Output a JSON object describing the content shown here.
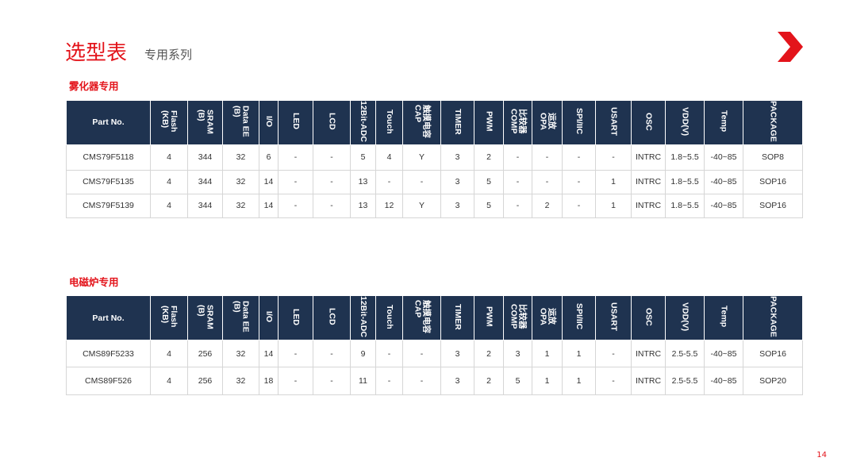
{
  "header": {
    "title": "选型表",
    "subtitle": "专用系列"
  },
  "sections": [
    {
      "title": "雾化器专用",
      "table": {
        "headers": [
          [
            "Part No."
          ],
          [
            "Flash",
            "(KB)"
          ],
          [
            "SRAM",
            "(B)"
          ],
          [
            "Data EE",
            "(B)"
          ],
          [
            "I/O"
          ],
          [
            "LED"
          ],
          [
            "LCD"
          ],
          [
            "12Bit-ADC"
          ],
          [
            "Touch"
          ],
          [
            "触摸电容",
            "CAP"
          ],
          [
            "TIMER"
          ],
          [
            "PWM"
          ],
          [
            "比较器",
            "COMP"
          ],
          [
            "运放",
            "OPA"
          ],
          [
            "SPI/IIC"
          ],
          [
            "USART"
          ],
          [
            "OSC"
          ],
          [
            "VDD(V)"
          ],
          [
            "Temp"
          ],
          [
            "PACKAGE"
          ]
        ],
        "rows": [
          [
            "CMS79F5118",
            "4",
            "344",
            "32",
            "6",
            "-",
            "-",
            "5",
            "4",
            "Y",
            "3",
            "2",
            "-",
            "-",
            "-",
            "-",
            "INTRC",
            "1.8~5.5",
            "-40~85",
            "SOP8"
          ],
          [
            "CMS79F5135",
            "4",
            "344",
            "32",
            "14",
            "-",
            "-",
            "13",
            "-",
            "-",
            "3",
            "5",
            "-",
            "-",
            "-",
            "1",
            "INTRC",
            "1.8~5.5",
            "-40~85",
            "SOP16"
          ],
          [
            "CMS79F5139",
            "4",
            "344",
            "32",
            "14",
            "-",
            "-",
            "13",
            "12",
            "Y",
            "3",
            "5",
            "-",
            "2",
            "-",
            "1",
            "INTRC",
            "1.8~5.5",
            "-40~85",
            "SOP16"
          ]
        ]
      }
    },
    {
      "title": "电磁炉专用",
      "table": {
        "headers": [
          [
            "Part No."
          ],
          [
            "Flash",
            "(KB)"
          ],
          [
            "SRAM",
            "(B)"
          ],
          [
            "Data EE",
            "(B)"
          ],
          [
            "I/O"
          ],
          [
            "LED"
          ],
          [
            "LCD"
          ],
          [
            "12Bit-ADC"
          ],
          [
            "Touch"
          ],
          [
            "触摸电容",
            "CAP"
          ],
          [
            "TIMER"
          ],
          [
            "PWM"
          ],
          [
            "比较器",
            "COMP"
          ],
          [
            "运放",
            "OPA"
          ],
          [
            "SPI/IIC"
          ],
          [
            "USART"
          ],
          [
            "OSC"
          ],
          [
            "VDD(V)"
          ],
          [
            "Temp"
          ],
          [
            "PACKAGE"
          ]
        ],
        "rows": [
          [
            "CMS89F5233",
            "4",
            "256",
            "32",
            "14",
            "-",
            "-",
            "9",
            "-",
            "-",
            "3",
            "2",
            "3",
            "1",
            "1",
            "-",
            "INTRC",
            "2.5-5.5",
            "-40~85",
            "SOP16"
          ],
          [
            "CMS89F526",
            "4",
            "256",
            "32",
            "18",
            "-",
            "-",
            "11",
            "-",
            "-",
            "3",
            "2",
            "5",
            "1",
            "1",
            "-",
            "INTRC",
            "2.5-5.5",
            "-40~85",
            "SOP20"
          ]
        ]
      }
    }
  ],
  "page_number": "14"
}
